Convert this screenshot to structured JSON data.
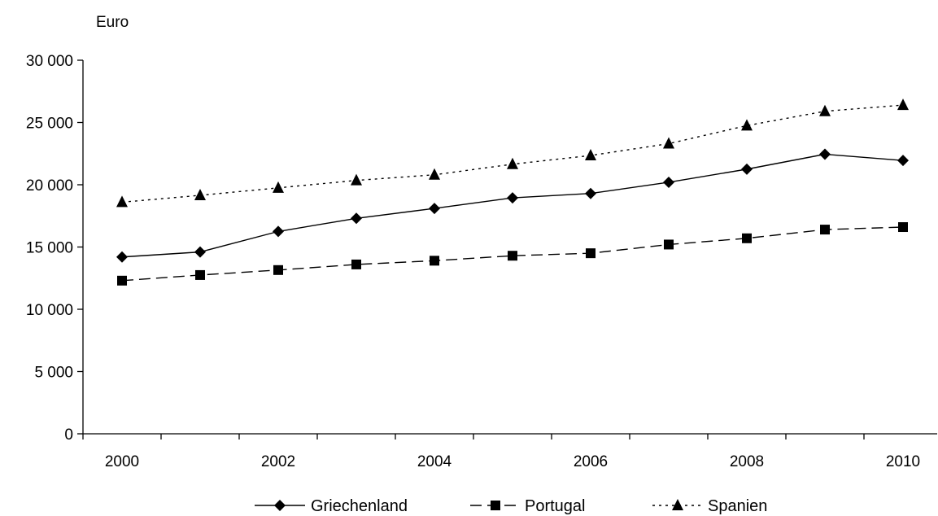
{
  "chart_data": {
    "type": "line",
    "ylabel": "Euro",
    "ylim": [
      0,
      30000
    ],
    "yticks": [
      0,
      5000,
      10000,
      15000,
      20000,
      25000,
      30000
    ],
    "ytick_labels": [
      "0",
      "5 000",
      "10 000",
      "15 000",
      "20 000",
      "25 000",
      "30 000"
    ],
    "x": [
      2000,
      2001,
      2002,
      2003,
      2004,
      2005,
      2006,
      2007,
      2008,
      2009,
      2010
    ],
    "xtick_labels": [
      "2000",
      "2002",
      "2004",
      "2006",
      "2008",
      "2010"
    ],
    "grid": false,
    "legend_position": "bottom",
    "series": [
      {
        "name": "Griechenland",
        "marker": "diamond",
        "line_style": "solid",
        "values": [
          14200,
          14600,
          16250,
          17300,
          18100,
          18950,
          19300,
          20200,
          21250,
          22450,
          21950
        ]
      },
      {
        "name": "Portugal",
        "marker": "square",
        "line_style": "dashed",
        "values": [
          12300,
          12750,
          13150,
          13600,
          13900,
          14300,
          14500,
          15200,
          15700,
          16400,
          16600
        ]
      },
      {
        "name": "Spanien",
        "marker": "triangle",
        "line_style": "dotted",
        "values": [
          18600,
          19150,
          19750,
          20350,
          20800,
          21650,
          22350,
          23300,
          24750,
          25900,
          26400
        ]
      }
    ]
  }
}
